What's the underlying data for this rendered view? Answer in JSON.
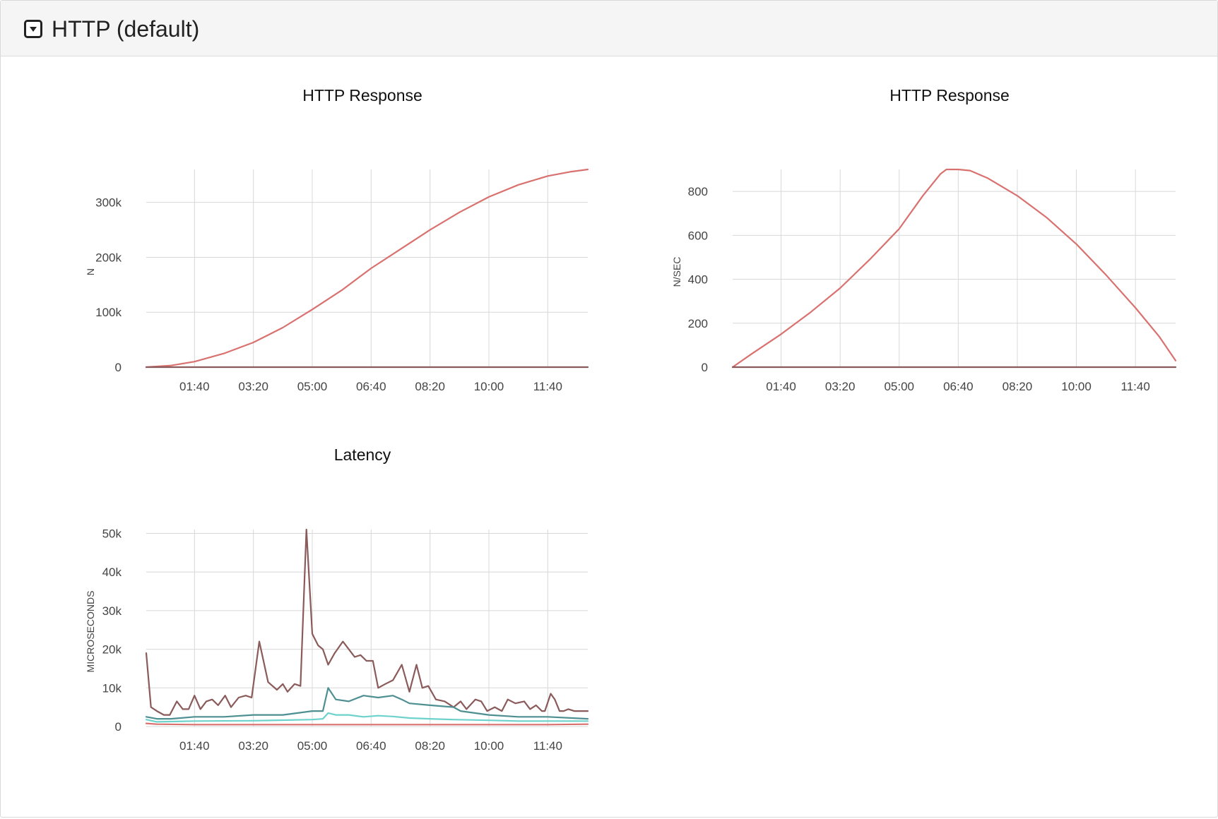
{
  "panel": {
    "title": "HTTP (default)",
    "toggle_icon": "caret-down-square-icon"
  },
  "chart_data": [
    {
      "type": "line",
      "title": "HTTP Response",
      "ylabel": "N",
      "xlabel": "",
      "x_ticks": [
        "01:40",
        "03:20",
        "05:00",
        "06:40",
        "08:20",
        "10:00",
        "11:40"
      ],
      "x_tick_values": [
        100,
        200,
        300,
        400,
        500,
        600,
        700
      ],
      "xlim": [
        18,
        768
      ],
      "y_ticks": [
        "0",
        "100k",
        "200k",
        "300k"
      ],
      "y_tick_values": [
        0,
        100000,
        200000,
        300000
      ],
      "ylim": [
        0,
        360000
      ],
      "grid": true,
      "series": [
        {
          "color": "#d9716f",
          "x": [
            18,
            60,
            100,
            150,
            200,
            250,
            300,
            350,
            400,
            450,
            500,
            550,
            600,
            650,
            700,
            740,
            768
          ],
          "y": [
            0,
            3000,
            10000,
            25000,
            45000,
            72000,
            105000,
            140000,
            180000,
            215000,
            250000,
            282000,
            310000,
            332000,
            348000,
            356000,
            360000
          ]
        },
        {
          "color": "#8b5a5a",
          "x": [
            18,
            768
          ],
          "y": [
            0,
            0
          ]
        }
      ]
    },
    {
      "type": "line",
      "title": "HTTP Response",
      "ylabel": "N/SEC",
      "xlabel": "",
      "x_ticks": [
        "01:40",
        "03:20",
        "05:00",
        "06:40",
        "08:20",
        "10:00",
        "11:40"
      ],
      "x_tick_values": [
        100,
        200,
        300,
        400,
        500,
        600,
        700
      ],
      "xlim": [
        18,
        768
      ],
      "y_ticks": [
        "0",
        "200",
        "400",
        "600",
        "800"
      ],
      "y_tick_values": [
        0,
        200,
        400,
        600,
        800
      ],
      "ylim": [
        0,
        900
      ],
      "grid": true,
      "series": [
        {
          "color": "#d9716f",
          "x": [
            18,
            50,
            100,
            150,
            200,
            250,
            300,
            340,
            370,
            380,
            400,
            420,
            450,
            500,
            550,
            600,
            650,
            700,
            740,
            768
          ],
          "y": [
            0,
            60,
            150,
            250,
            360,
            490,
            630,
            780,
            880,
            900,
            900,
            895,
            860,
            780,
            680,
            560,
            420,
            270,
            140,
            30
          ]
        },
        {
          "color": "#8b5a5a",
          "x": [
            18,
            768
          ],
          "y": [
            0,
            0
          ]
        }
      ]
    },
    {
      "type": "line",
      "title": "Latency",
      "ylabel": "MICROSECONDS",
      "xlabel": "",
      "x_ticks": [
        "01:40",
        "03:20",
        "05:00",
        "06:40",
        "08:20",
        "10:00",
        "11:40"
      ],
      "x_tick_values": [
        100,
        200,
        300,
        400,
        500,
        600,
        700
      ],
      "xlim": [
        18,
        768
      ],
      "y_ticks": [
        "0",
        "10k",
        "20k",
        "30k",
        "40k",
        "50k"
      ],
      "y_tick_values": [
        0,
        10000,
        20000,
        30000,
        40000,
        50000
      ],
      "ylim": [
        0,
        51000
      ],
      "grid": true,
      "series": [
        {
          "color": "#8b5a5a",
          "x": [
            18,
            26,
            36,
            48,
            58,
            70,
            80,
            90,
            100,
            110,
            120,
            130,
            140,
            152,
            162,
            175,
            187,
            197,
            210,
            225,
            240,
            250,
            258,
            270,
            280,
            290,
            300,
            310,
            318,
            327,
            338,
            352,
            362,
            372,
            382,
            392,
            403,
            412,
            424,
            437,
            452,
            465,
            477,
            487,
            497,
            510,
            525,
            540,
            552,
            562,
            577,
            587,
            597,
            610,
            622,
            632,
            645,
            660,
            670,
            680,
            690,
            695,
            705,
            712,
            720,
            727,
            735,
            745,
            755,
            768
          ],
          "y": [
            19000,
            5000,
            4000,
            3000,
            3000,
            6500,
            4500,
            4500,
            8000,
            4500,
            6500,
            7000,
            5500,
            8000,
            5000,
            7500,
            8000,
            7500,
            22000,
            11500,
            9500,
            11000,
            9000,
            11000,
            10500,
            51000,
            24000,
            21000,
            20000,
            16000,
            19000,
            22000,
            20000,
            18000,
            18500,
            17000,
            17000,
            10000,
            11000,
            12000,
            16000,
            9000,
            16000,
            10000,
            10500,
            7000,
            6500,
            5000,
            6500,
            4500,
            7000,
            6500,
            4000,
            5000,
            4000,
            7000,
            6000,
            6500,
            4500,
            5500,
            4000,
            4000,
            8500,
            7000,
            4000,
            4000,
            4500,
            4000,
            4000,
            4000
          ]
        },
        {
          "color": "#4e8f92",
          "x": [
            18,
            36,
            60,
            100,
            150,
            200,
            250,
            300,
            318,
            327,
            340,
            362,
            387,
            412,
            437,
            452,
            465,
            500,
            540,
            552,
            600,
            650,
            700,
            768
          ],
          "y": [
            2500,
            2000,
            2000,
            2500,
            2500,
            3000,
            3000,
            4000,
            4000,
            10000,
            7000,
            6500,
            8000,
            7500,
            8000,
            7000,
            6000,
            5500,
            5000,
            4000,
            3000,
            2500,
            2500,
            2000
          ]
        },
        {
          "color": "#6dd2cc",
          "x": [
            18,
            36,
            100,
            200,
            300,
            318,
            327,
            340,
            362,
            387,
            412,
            437,
            465,
            500,
            540,
            600,
            650,
            700,
            768
          ],
          "y": [
            1800,
            1200,
            1400,
            1500,
            1800,
            2000,
            3500,
            3000,
            3000,
            2500,
            2800,
            2600,
            2200,
            2000,
            1800,
            1600,
            1400,
            1400,
            1400
          ]
        },
        {
          "color": "#d9716f",
          "x": [
            18,
            36,
            100,
            200,
            300,
            400,
            500,
            600,
            700,
            768
          ],
          "y": [
            800,
            600,
            500,
            500,
            500,
            500,
            500,
            500,
            500,
            600
          ]
        }
      ]
    }
  ]
}
